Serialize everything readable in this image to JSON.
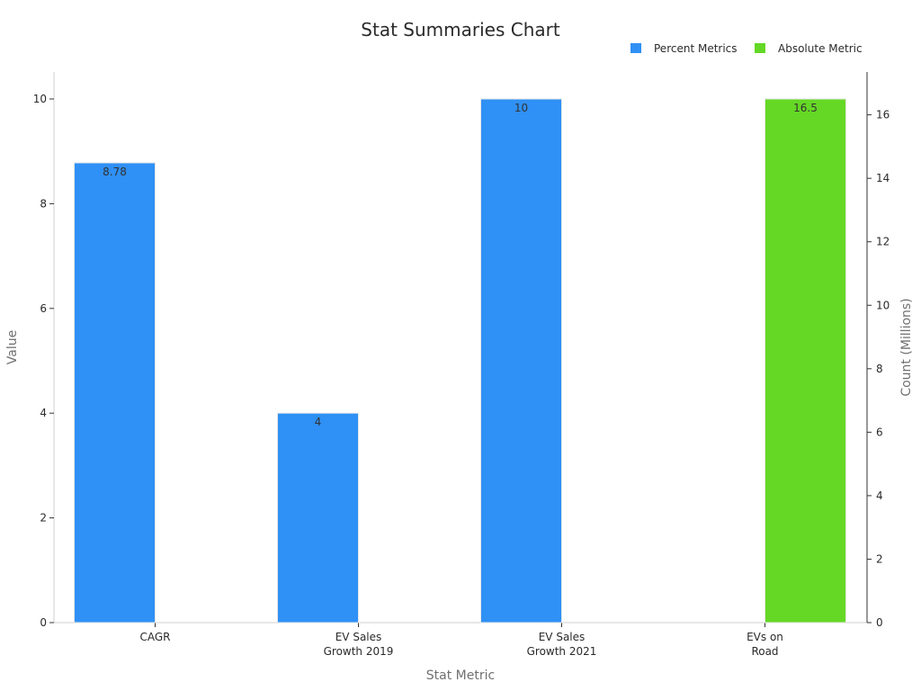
{
  "chart_data": {
    "type": "bar",
    "title": "Stat Summaries Chart",
    "xlabel": "Stat Metric",
    "ylabel": "Value",
    "y2label": "Count (Millions)",
    "categories": [
      [
        "CAGR"
      ],
      [
        "EV Sales",
        "Growth 2019"
      ],
      [
        "EV Sales",
        "Growth 2021"
      ],
      [
        "EVs on",
        "Road"
      ]
    ],
    "ylim": [
      0,
      10.5
    ],
    "y2lim": [
      0,
      17.325
    ],
    "yticks": [
      0,
      2,
      4,
      6,
      8,
      10
    ],
    "y2ticks": [
      0,
      2,
      4,
      6,
      8,
      10,
      12,
      14,
      16
    ],
    "legend_position": "top-right",
    "grid": false,
    "series": [
      {
        "name": "Percent Metrics",
        "axis": "left",
        "color": "#2f90f5",
        "values": [
          8.78,
          4,
          10,
          null
        ],
        "labels": [
          "8.78",
          "4",
          "10",
          ""
        ]
      },
      {
        "name": "Absolute Metric",
        "axis": "right",
        "color": "#65d825",
        "values": [
          null,
          null,
          null,
          16.5
        ],
        "labels": [
          "",
          "",
          "",
          "16.5"
        ]
      }
    ]
  }
}
